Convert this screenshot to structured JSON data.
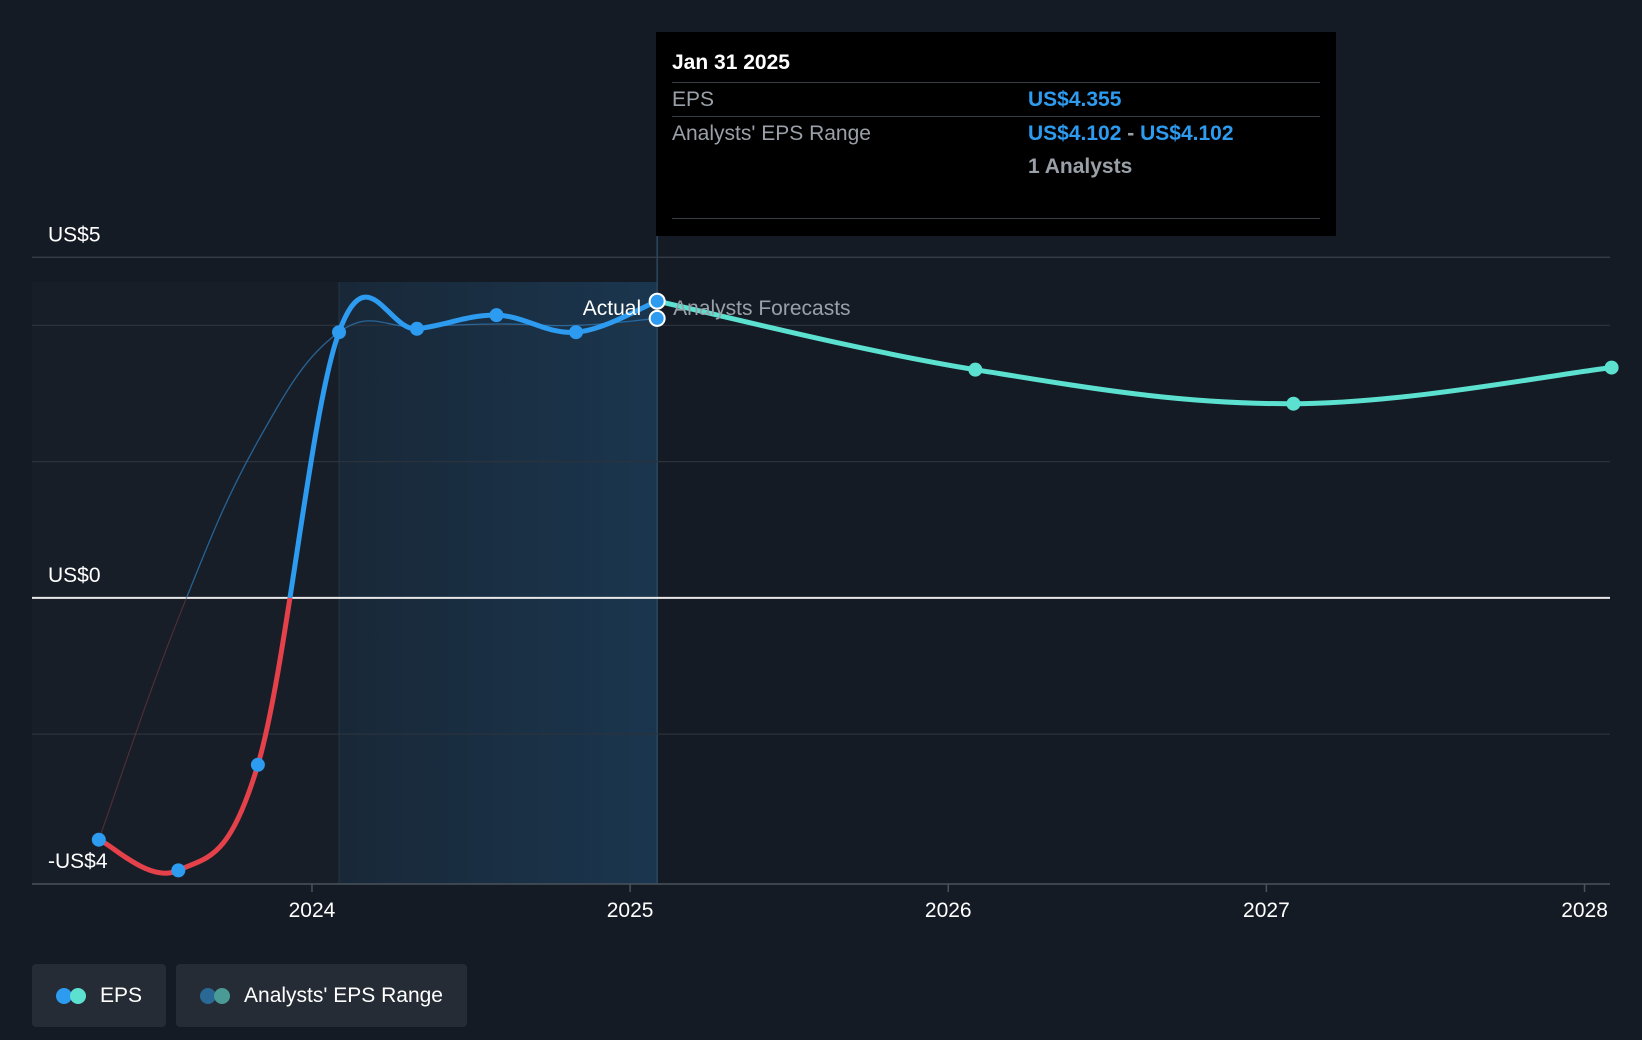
{
  "chart_data": {
    "type": "line",
    "y_tick_labels": [
      "US$5",
      "US$0",
      "-US$4"
    ],
    "y_ticks": [
      5,
      0,
      -4
    ],
    "x_tick_labels": [
      "2024",
      "2025",
      "2026",
      "2027",
      "2028"
    ],
    "x_ticks": [
      2024.0,
      2025.0,
      2026.0,
      2027.0,
      2028.0
    ],
    "xlim": [
      2023.12,
      2028.08
    ],
    "ylim": [
      -4.2,
      5.4
    ],
    "grid": true,
    "region_labels": {
      "actual": "Actual",
      "forecast": "Analysts Forecasts"
    },
    "divider_x": 2025.085,
    "shaded_start_x": 2024.085,
    "series": [
      {
        "name": "EPS",
        "role": "actual",
        "x": [
          2023.33,
          2023.58,
          2023.83,
          2024.085,
          2024.33,
          2024.58,
          2024.83,
          2025.085
        ],
        "y": [
          -3.55,
          -4.0,
          -2.45,
          3.9,
          3.95,
          4.15,
          3.9,
          4.355
        ]
      },
      {
        "name": "Analysts' EPS Range",
        "role": "range_history",
        "x": [
          2023.33,
          2023.58,
          2023.83,
          2024.085,
          2024.33,
          2024.58,
          2024.83,
          2025.085
        ],
        "y": [
          -3.55,
          -0.3,
          2.3,
          3.9,
          3.98,
          4.02,
          4.0,
          4.102
        ]
      },
      {
        "name": "EPS",
        "role": "forecast",
        "x": [
          2025.085,
          2026.085,
          2027.085,
          2028.085
        ],
        "y": [
          4.355,
          3.35,
          2.85,
          3.38
        ]
      }
    ],
    "colors": {
      "actual_positive": "#2d9bef",
      "actual_negative": "#e5414a",
      "forecast": "#5ce0cf",
      "range": "#2d7ab8",
      "shade": "#1b3a55",
      "background": "#151b24"
    }
  },
  "tooltip": {
    "date": "Jan 31 2025",
    "eps_label": "EPS",
    "eps_value": "US$4.355",
    "range_label": "Analysts' EPS Range",
    "range_low": "US$4.102",
    "range_sep": "-",
    "range_high": "US$4.102",
    "analysts": "1 Analysts"
  },
  "legend": [
    {
      "label": "EPS",
      "dot1": "#2d9bef",
      "dot2": "#5ce0cf"
    },
    {
      "label": "Analysts' EPS Range",
      "dot1": "#2a6896",
      "dot2": "#4a9a95"
    }
  ]
}
